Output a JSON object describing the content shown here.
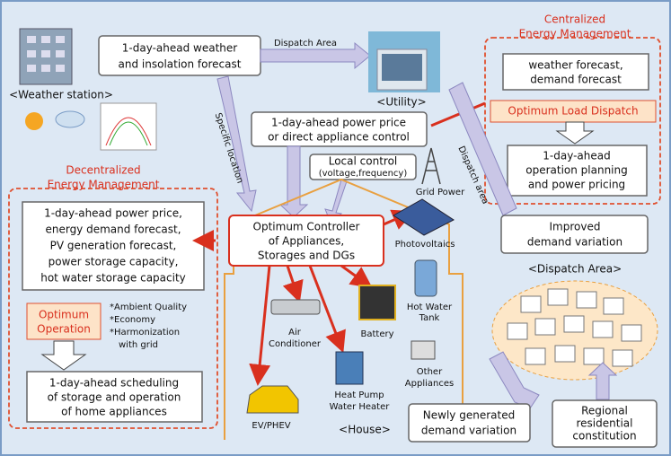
{
  "weather_station": {
    "label": "<Weather station>"
  },
  "weather_forecast": {
    "lines": [
      "1-day-ahead weather",
      "and insolation forecast"
    ]
  },
  "arrow_dispatch_area": "Dispatch Area",
  "utility": {
    "label": "<Utility>"
  },
  "centralized": {
    "title": [
      "Centralized",
      "Energy Management"
    ],
    "forecast": [
      "weather forecast,",
      "demand forecast"
    ],
    "dispatch": "Optimum Load Dispatch",
    "planning": [
      "1-day-ahead",
      "operation planning",
      "and power pricing"
    ]
  },
  "price_signal": [
    "1-day-ahead power price",
    "or direct appliance control"
  ],
  "specific_location": "Specific location",
  "local_control": [
    "Local control",
    "(voltage,frequency)"
  ],
  "grid_power": "Grid Power",
  "dispatch_area_arrow": "Dispatch area",
  "improved": [
    "Improved",
    "demand variation"
  ],
  "decentralized": {
    "title": [
      "Decentralized",
      "Energy Management"
    ],
    "inputs": [
      "1-day-ahead power price,",
      "energy demand forecast,",
      "PV generation forecast,",
      "power storage capacity,",
      "hot water storage capacity"
    ],
    "operation": [
      "Optimum",
      "Operation"
    ],
    "criteria": [
      "*Ambient Quality",
      "*Economy",
      "*Harmonization",
      "with grid"
    ],
    "schedule": [
      "1-day-ahead scheduling",
      "of storage and operation",
      "of home appliances"
    ]
  },
  "controller": [
    "Optimum Controller",
    "of Appliances,",
    "Storages and DGs"
  ],
  "house": {
    "label": "<House>",
    "photovoltaics": "Photovoltaics",
    "air_conditioner": [
      "Air",
      "Conditioner"
    ],
    "battery": "Battery",
    "hot_water_tank": [
      "Hot Water",
      "Tank"
    ],
    "other_appliances": [
      "Other",
      "Appliances"
    ],
    "heat_pump": [
      "Heat Pump",
      "Water Heater"
    ],
    "ev": "EV/PHEV"
  },
  "dispatch_area": {
    "label": "<Dispatch Area>",
    "new_demand": [
      "Newly generated",
      "demand variation"
    ],
    "regional": [
      "Regional",
      "residential",
      "constitution"
    ]
  }
}
